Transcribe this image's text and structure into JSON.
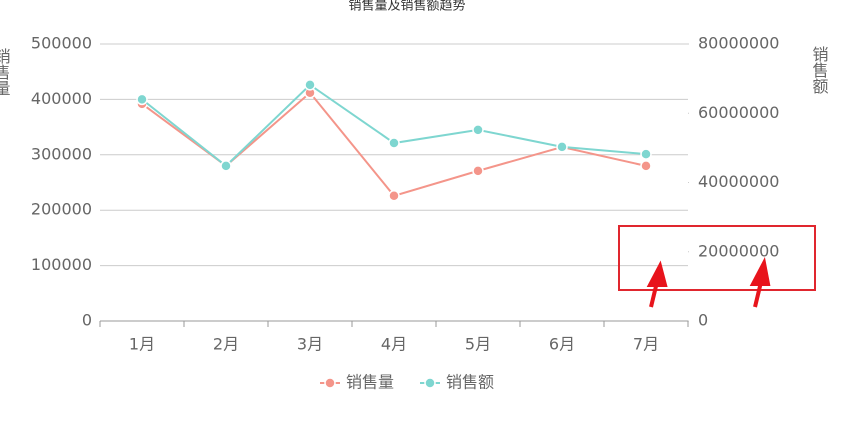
{
  "chart_data": {
    "type": "line",
    "title": "销售量及销售额趋势",
    "y_label": "销售量",
    "y2_label": "销售额",
    "categories": [
      "1月",
      "2月",
      "3月",
      "4月",
      "5月",
      "6月",
      "7月"
    ],
    "series": [
      {
        "name": "销售量",
        "color": "#f4958a",
        "values": [
          392000,
          280000,
          412000,
          226000,
          271000,
          314000,
          280000
        ]
      },
      {
        "name": "销售额",
        "color": "#7ed6d0",
        "axis": "y2",
        "values": [
          64000000,
          44800000,
          68200000,
          51400000,
          55200000,
          50300000,
          48200000
        ]
      }
    ],
    "ylim": [
      0,
      500000
    ],
    "yticks": [
      0,
      100000,
      200000,
      300000,
      400000,
      500000
    ],
    "y2lim": [
      0,
      80000000
    ],
    "y2ticks": [
      0,
      20000000,
      40000000,
      60000000,
      80000000
    ],
    "grid": true,
    "legend": "bottom"
  }
}
